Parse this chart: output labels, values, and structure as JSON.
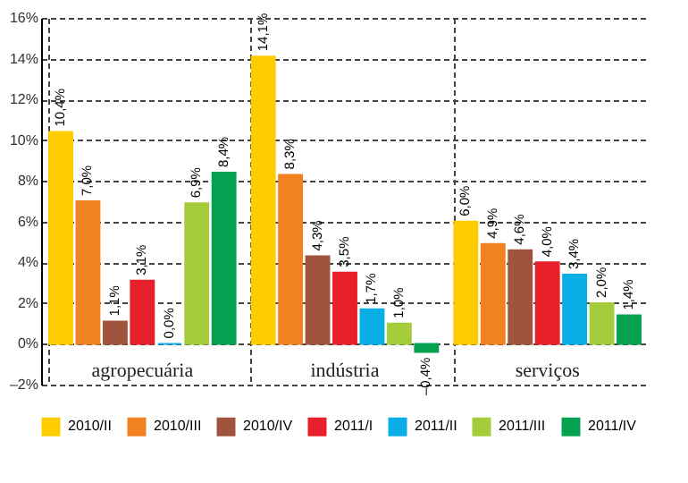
{
  "chart_data": {
    "type": "bar",
    "categories": [
      "agropecuária",
      "indústria",
      "serviços"
    ],
    "series": [
      {
        "name": "2010/II",
        "color": "#ffcc00",
        "values": [
          10.4,
          14.1,
          6.0
        ],
        "value_labels": [
          "10,4%",
          "14,1%",
          "6,0%"
        ]
      },
      {
        "name": "2010/III",
        "color": "#f28122",
        "values": [
          7.0,
          8.3,
          4.9
        ],
        "value_labels": [
          "7,0%",
          "8,3%",
          "4,9%"
        ]
      },
      {
        "name": "2010/IV",
        "color": "#a0543d",
        "values": [
          1.1,
          4.3,
          4.6
        ],
        "value_labels": [
          "1,1%",
          "4,3%",
          "4,6%"
        ]
      },
      {
        "name": "2011/I",
        "color": "#e8202a",
        "values": [
          3.1,
          3.5,
          4.0
        ],
        "value_labels": [
          "3,1%",
          "3,5%",
          "4,0%"
        ]
      },
      {
        "name": "2011/II",
        "color": "#0aaee6",
        "values": [
          0.0,
          1.7,
          3.4
        ],
        "value_labels": [
          "0,0%",
          "1,7%",
          "3,4%"
        ]
      },
      {
        "name": "2011/III",
        "color": "#a5cc3a",
        "values": [
          6.9,
          1.0,
          2.0
        ],
        "value_labels": [
          "6,9%",
          "1,0%",
          "2,0%"
        ]
      },
      {
        "name": "2011/IV",
        "color": "#05a150",
        "values": [
          8.4,
          -0.4,
          1.4
        ],
        "value_labels": [
          "8,4%",
          "–0,4%",
          "1,4%"
        ]
      }
    ],
    "ylim": [
      -2,
      16
    ],
    "yticks": [
      {
        "value": -2,
        "label": "–2%"
      },
      {
        "value": 0,
        "label": "0%"
      },
      {
        "value": 2,
        "label": "2%"
      },
      {
        "value": 4,
        "label": "4%"
      },
      {
        "value": 6,
        "label": "6%"
      },
      {
        "value": 8,
        "label": "8%"
      },
      {
        "value": 10,
        "label": "10%"
      },
      {
        "value": 12,
        "label": "12%"
      },
      {
        "value": 14,
        "label": "14%"
      },
      {
        "value": 16,
        "label": "16%"
      }
    ],
    "grid": true,
    "legend": "bottom"
  }
}
